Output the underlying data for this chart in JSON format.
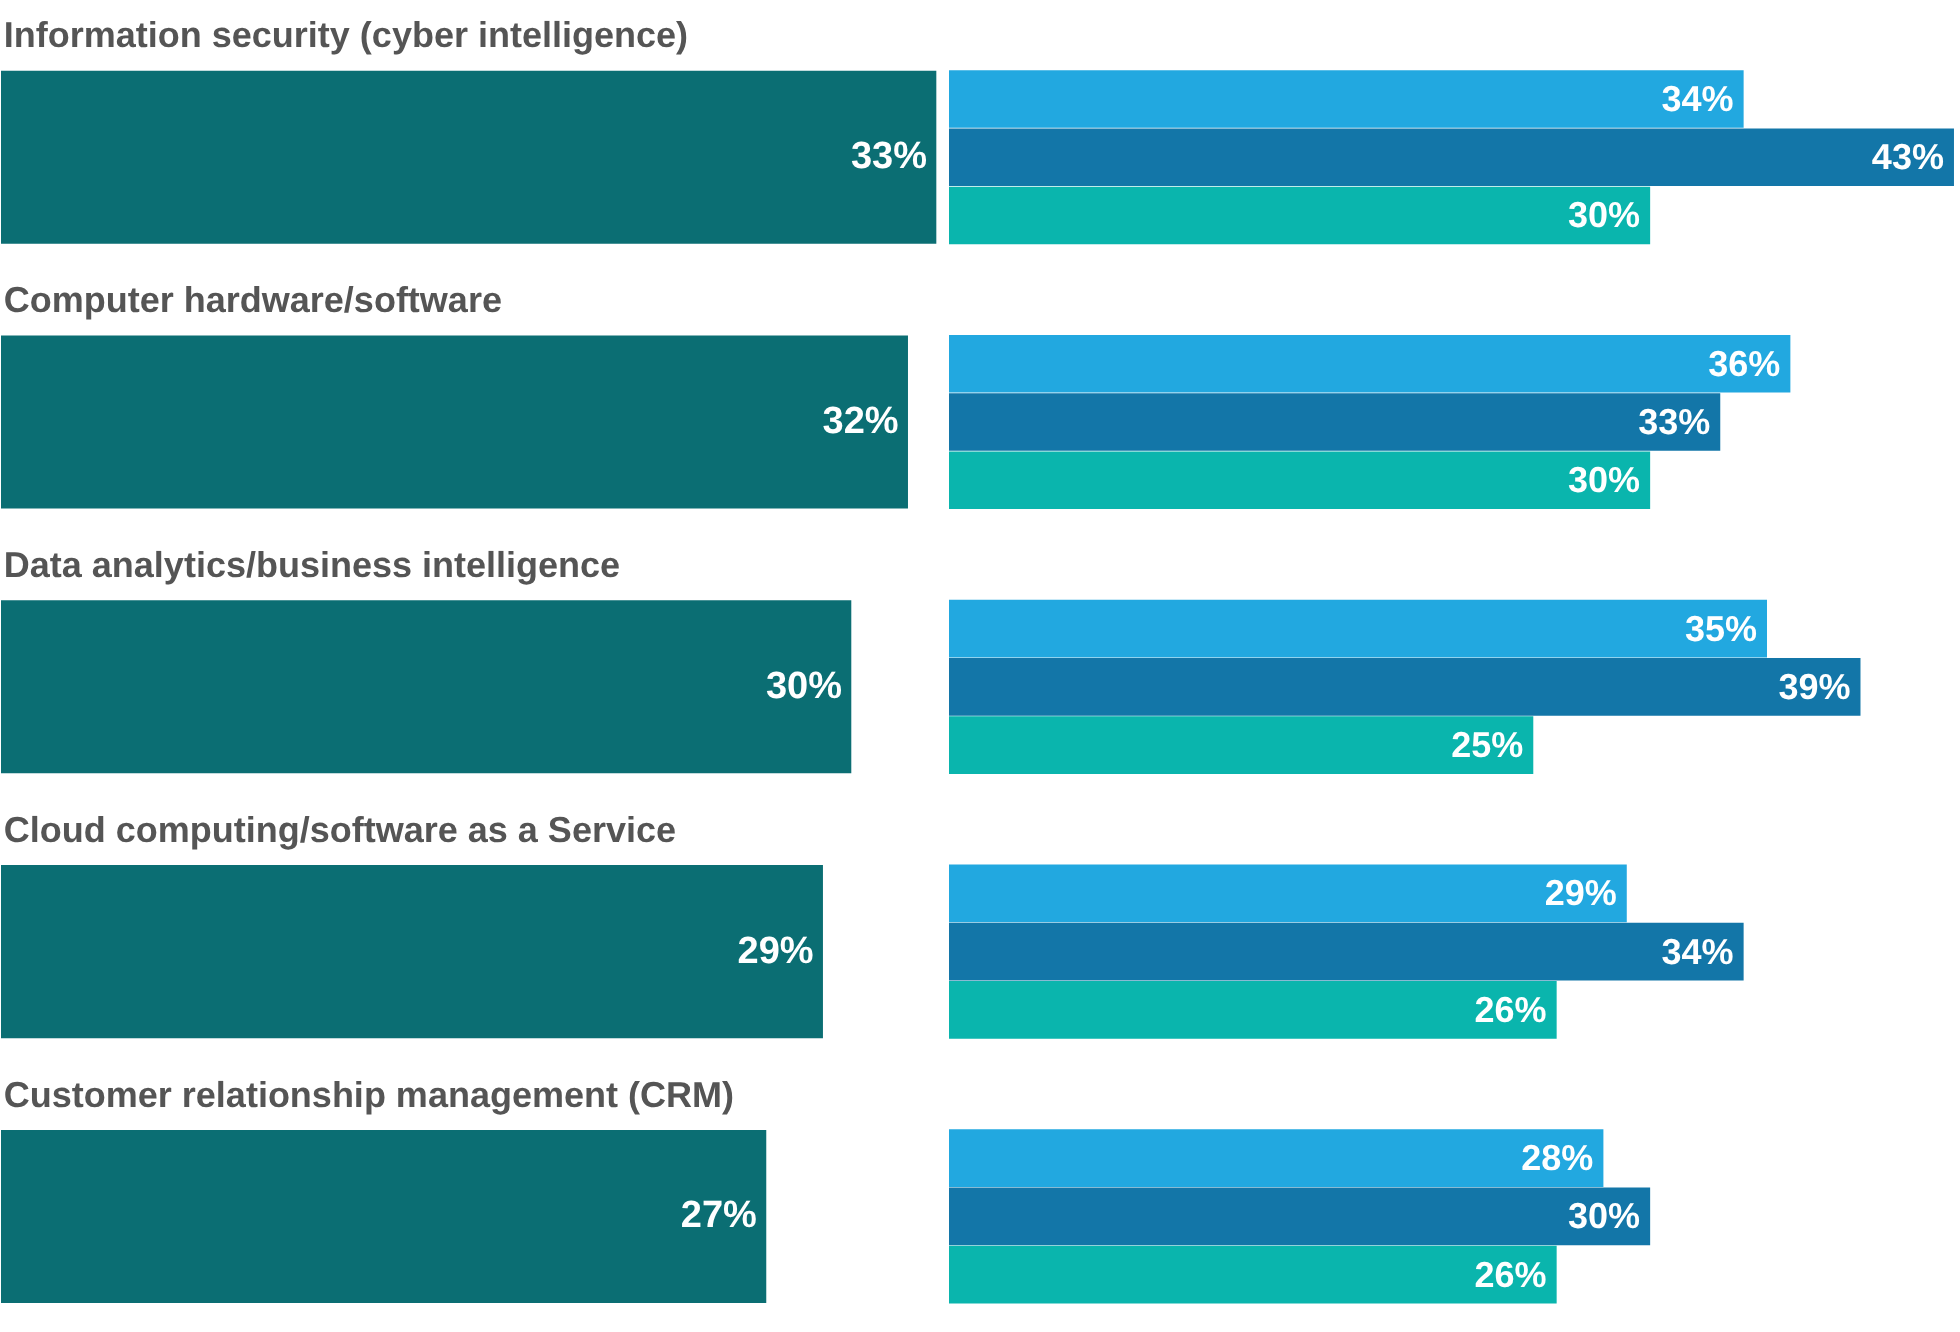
{
  "chart_data": [
    {
      "type": "bar",
      "orientation": "horizontal",
      "categories": [
        "Information security (cyber intelligence)",
        "Computer hardware/software",
        "Data analytics/business intelligence",
        "Cloud computing/software as a Service",
        "Customer relationship management (CRM)"
      ],
      "values": [
        33,
        32,
        30,
        29,
        27
      ],
      "value_labels": [
        "33%",
        "32%",
        "30%",
        "29%",
        "27%"
      ],
      "color": "#0b6e73"
    },
    {
      "type": "bar",
      "orientation": "horizontal",
      "categories": [
        null,
        null,
        null,
        null,
        null
      ],
      "series": [
        {
          "color": "#22a8e0",
          "values": [
            34,
            36,
            35,
            29,
            28
          ],
          "value_labels": [
            "34%",
            "36%",
            "35%",
            "29%",
            "28%"
          ]
        },
        {
          "color": "#1376a8",
          "values": [
            43,
            33,
            39,
            34,
            30
          ],
          "value_labels": [
            "43%",
            "33%",
            "39%",
            "34%",
            "30%"
          ]
        },
        {
          "color": "#0ab5ad",
          "values": [
            30,
            30,
            25,
            26,
            26
          ],
          "value_labels": [
            "30%",
            "30%",
            "25%",
            "26%",
            "26%"
          ]
        }
      ]
    }
  ]
}
